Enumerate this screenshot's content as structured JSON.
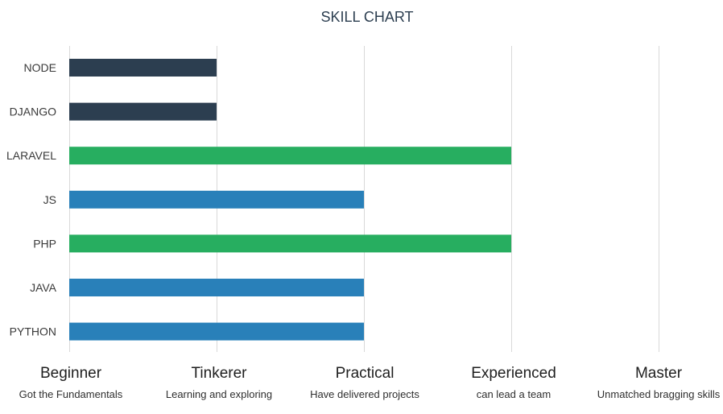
{
  "chart_data": {
    "type": "bar",
    "orientation": "horizontal",
    "title": "SKILL CHART",
    "categories": [
      "NODE",
      "DJANGO",
      "LARAVEL",
      "JS",
      "PHP",
      "JAVA",
      "PYTHON"
    ],
    "values": [
      1,
      1,
      3,
      2,
      3,
      2,
      2
    ],
    "bar_colors": [
      "#2c3e50",
      "#2c3e50",
      "#27ae60",
      "#2980b9",
      "#27ae60",
      "#2980b9",
      "#2980b9"
    ],
    "x_ticks": [
      {
        "value": 0,
        "label": "Beginner",
        "sublabel": "Got the Fundamentals"
      },
      {
        "value": 1,
        "label": "Tinkerer",
        "sublabel": "Learning and exploring"
      },
      {
        "value": 2,
        "label": "Practical",
        "sublabel": "Have delivered projects"
      },
      {
        "value": 3,
        "label": "Experienced",
        "sublabel": "can lead a team"
      },
      {
        "value": 4,
        "label": "Master",
        "sublabel": "Unmatched bragging skills"
      }
    ],
    "xlim": [
      0,
      4
    ],
    "grid": true,
    "xlabel": "",
    "ylabel": "",
    "legend": false
  }
}
